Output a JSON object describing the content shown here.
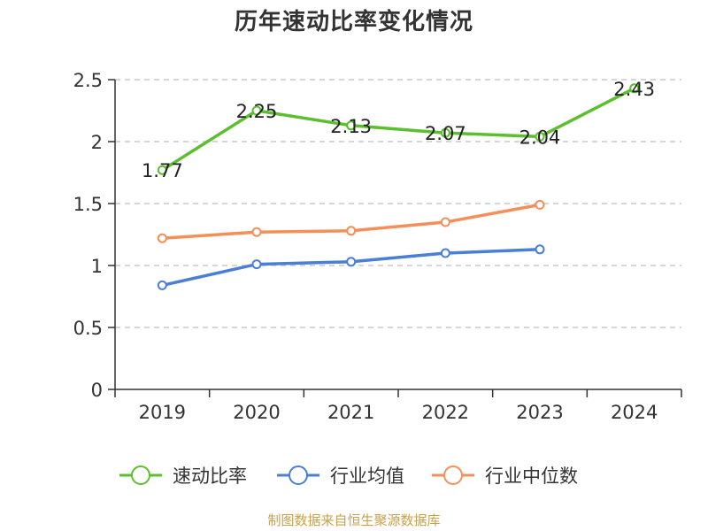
{
  "title": "历年速动比率变化情况",
  "source": "制图数据来自恒生聚源数据库",
  "colors": {
    "axis": "#333333",
    "grid": "#c8c8c8",
    "source_text": "#c8a24a"
  },
  "chart_data": {
    "type": "line",
    "title": "历年速动比率变化情况",
    "xlabel": "",
    "ylabel": "",
    "categories": [
      "2019",
      "2020",
      "2021",
      "2022",
      "2023",
      "2024"
    ],
    "ylim": [
      0,
      2.5
    ],
    "yticks": [
      "0",
      "0.5",
      "1",
      "1.5",
      "2",
      "2.5"
    ],
    "grid": true,
    "legend_position": "bottom",
    "series": [
      {
        "name": "速动比率",
        "color": "#5bbf2e",
        "values": [
          1.77,
          2.25,
          2.13,
          2.07,
          2.04,
          2.43
        ],
        "labels": [
          "1.77",
          "2.25",
          "2.13",
          "2.07",
          "2.04",
          "2.43"
        ]
      },
      {
        "name": "行业均值",
        "color": "#4a7fd6",
        "values": [
          0.84,
          1.01,
          1.03,
          1.1,
          1.13,
          null
        ]
      },
      {
        "name": "行业中位数",
        "color": "#f58f5a",
        "values": [
          1.22,
          1.27,
          1.28,
          1.35,
          1.49,
          null
        ]
      }
    ]
  }
}
